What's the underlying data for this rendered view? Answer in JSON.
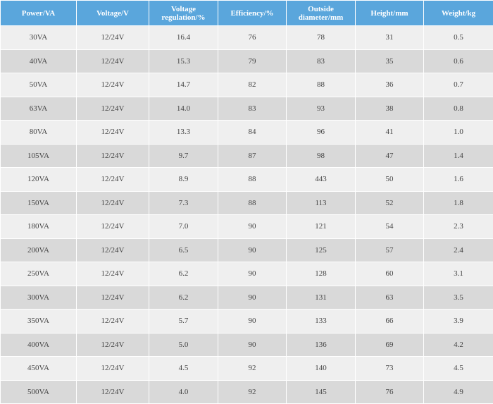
{
  "table": {
    "headers": [
      "Power/VA",
      "Voltage/V",
      "Voltage regulation/%",
      "Efficiency/%",
      "Outside diameter/mm",
      "Height/mm",
      "Weight/kg"
    ],
    "rows": [
      [
        "30VA",
        "12/24V",
        "16.4",
        "76",
        "78",
        "31",
        "0.5"
      ],
      [
        "40VA",
        "12/24V",
        "15.3",
        "79",
        "83",
        "35",
        "0.6"
      ],
      [
        "50VA",
        "12/24V",
        "14.7",
        "82",
        "88",
        "36",
        "0.7"
      ],
      [
        "63VA",
        "12/24V",
        "14.0",
        "83",
        "93",
        "38",
        "0.8"
      ],
      [
        "80VA",
        "12/24V",
        "13.3",
        "84",
        "96",
        "41",
        "1.0"
      ],
      [
        "105VA",
        "12/24V",
        "9.7",
        "87",
        "98",
        "47",
        "1.4"
      ],
      [
        "120VA",
        "12/24V",
        "8.9",
        "88",
        "443",
        "50",
        "1.6"
      ],
      [
        "150VA",
        "12/24V",
        "7.3",
        "88",
        "113",
        "52",
        "1.8"
      ],
      [
        "180VA",
        "12/24V",
        "7.0",
        "90",
        "121",
        "54",
        "2.3"
      ],
      [
        "200VA",
        "12/24V",
        "6.5",
        "90",
        "125",
        "57",
        "2.4"
      ],
      [
        "250VA",
        "12/24V",
        "6.2",
        "90",
        "128",
        "60",
        "3.1"
      ],
      [
        "300VA",
        "12/24V",
        "6.2",
        "90",
        "131",
        "63",
        "3.5"
      ],
      [
        "350VA",
        "12/24V",
        "5.7",
        "90",
        "133",
        "66",
        "3.9"
      ],
      [
        "400VA",
        "12/24V",
        "5.0",
        "90",
        "136",
        "69",
        "4.2"
      ],
      [
        "450VA",
        "12/24V",
        "4.5",
        "92",
        "140",
        "73",
        "4.5"
      ],
      [
        "500VA",
        "12/24V",
        "4.0",
        "92",
        "145",
        "76",
        "4.9"
      ]
    ]
  }
}
